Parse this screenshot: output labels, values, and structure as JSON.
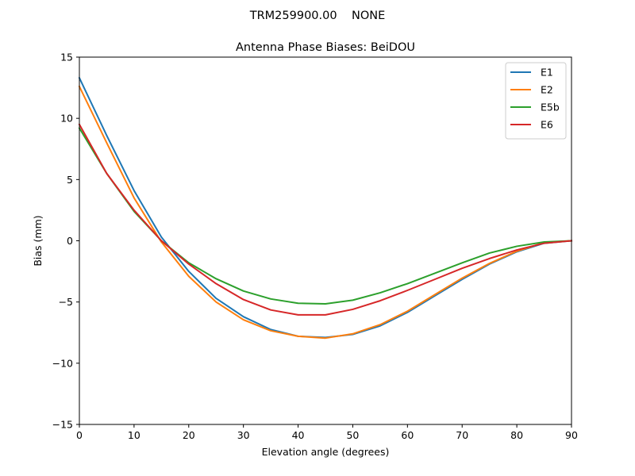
{
  "chart_data": {
    "type": "line",
    "suptitle": "TRM259900.00    NONE",
    "title": "Antenna Phase Biases: BeiDOU",
    "xlabel": "Elevation angle (degrees)",
    "ylabel": "Bias (mm)",
    "xlim": [
      0,
      90
    ],
    "ylim": [
      -15,
      15
    ],
    "xticks": [
      0,
      10,
      20,
      30,
      40,
      50,
      60,
      70,
      80,
      90
    ],
    "yticks": [
      -15,
      -10,
      -5,
      0,
      5,
      10,
      15
    ],
    "ytick_labels": [
      "−15",
      "−10",
      "−5",
      "0",
      "5",
      "10",
      "15"
    ],
    "grid": false,
    "legend_position": "top-right",
    "x": [
      0,
      5,
      10,
      15,
      20,
      25,
      30,
      35,
      40,
      45,
      50,
      55,
      60,
      65,
      70,
      75,
      80,
      85,
      90
    ],
    "series": [
      {
        "name": "E1",
        "color": "#1f77b4",
        "values": [
          13.3,
          8.6,
          4.1,
          0.3,
          -2.5,
          -4.7,
          -6.2,
          -7.25,
          -7.8,
          -7.9,
          -7.65,
          -6.95,
          -5.85,
          -4.5,
          -3.15,
          -1.9,
          -0.9,
          -0.2,
          0.0
        ]
      },
      {
        "name": "E2",
        "color": "#ff7f0e",
        "values": [
          12.6,
          8.0,
          3.5,
          -0.1,
          -2.9,
          -5.0,
          -6.45,
          -7.35,
          -7.8,
          -7.95,
          -7.6,
          -6.85,
          -5.75,
          -4.4,
          -3.05,
          -1.85,
          -0.85,
          -0.15,
          0.0
        ]
      },
      {
        "name": "E5b",
        "color": "#2ca02c",
        "values": [
          9.2,
          5.5,
          2.4,
          0.0,
          -1.8,
          -3.1,
          -4.1,
          -4.75,
          -5.1,
          -5.15,
          -4.85,
          -4.25,
          -3.5,
          -2.65,
          -1.8,
          -1.0,
          -0.45,
          -0.1,
          0.0
        ]
      },
      {
        "name": "E6",
        "color": "#d62728",
        "values": [
          9.5,
          5.5,
          2.5,
          0.0,
          -1.9,
          -3.5,
          -4.8,
          -5.65,
          -6.05,
          -6.05,
          -5.6,
          -4.9,
          -4.05,
          -3.15,
          -2.25,
          -1.45,
          -0.75,
          -0.2,
          0.0
        ]
      }
    ]
  }
}
